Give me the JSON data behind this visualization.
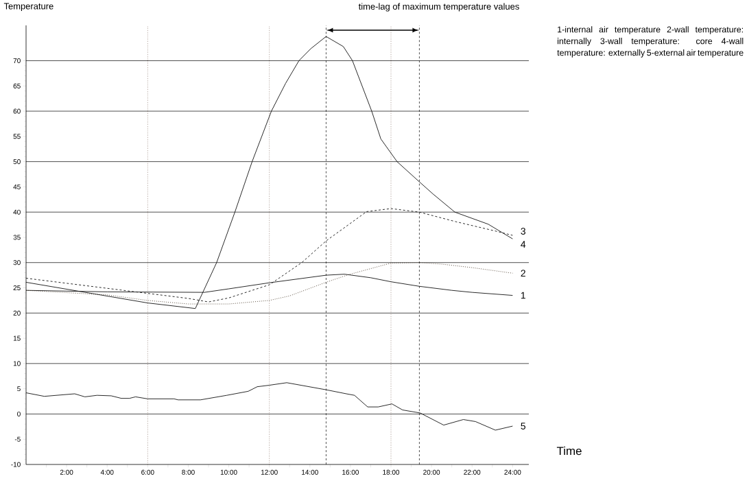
{
  "chart_data": {
    "type": "line",
    "xlabel": "Time",
    "ylabel": "Temperature",
    "annotations": [
      "time-lag of maximum temperature values",
      "1-internal air temperature 2-wall temperature: internally 3-wall temperature: core 4-wall temperature: externally 5-external air temperature"
    ],
    "xlim": [
      0,
      24.8
    ],
    "ylim": [
      -10,
      77
    ],
    "xticks": [
      {
        "value": 1,
        "label": null
      },
      {
        "value": 2,
        "label": "2:00"
      },
      {
        "value": 3,
        "label": null
      },
      {
        "value": 4,
        "label": "4:00"
      },
      {
        "value": 5,
        "label": null
      },
      {
        "value": 6,
        "label": "6:00"
      },
      {
        "value": 7,
        "label": null
      },
      {
        "value": 8,
        "label": "8:00"
      },
      {
        "value": 9,
        "label": null
      },
      {
        "value": 10,
        "label": "10:00"
      },
      {
        "value": 11,
        "label": null
      },
      {
        "value": 12,
        "label": "12:00"
      },
      {
        "value": 13,
        "label": null
      },
      {
        "value": 14,
        "label": "14:00"
      },
      {
        "value": 15,
        "label": null
      },
      {
        "value": 16,
        "label": "16:00"
      },
      {
        "value": 17,
        "label": null
      },
      {
        "value": 18,
        "label": "18:00"
      },
      {
        "value": 19,
        "label": null
      },
      {
        "value": 20,
        "label": "20:00"
      },
      {
        "value": 21,
        "label": null
      },
      {
        "value": 22,
        "label": "22:00"
      },
      {
        "value": 23,
        "label": null
      },
      {
        "value": 24,
        "label": "24:00"
      }
    ],
    "yticks": [
      -10,
      -5,
      0,
      5,
      10,
      15,
      20,
      25,
      30,
      35,
      40,
      45,
      50,
      55,
      60,
      65,
      70
    ],
    "ref_lines": [
      {
        "axis": "y",
        "value": 0,
        "color": "#000000",
        "line_style": "solid"
      },
      {
        "axis": "y",
        "value": 10,
        "color": "#000000",
        "line_style": "solid"
      },
      {
        "axis": "y",
        "value": 20,
        "color": "#000000",
        "line_style": "solid"
      },
      {
        "axis": "y",
        "value": 30,
        "color": "#000000",
        "line_style": "solid"
      },
      {
        "axis": "y",
        "value": 40,
        "color": "#000000",
        "line_style": "solid"
      },
      {
        "axis": "y",
        "value": 50,
        "color": "#000000",
        "line_style": "solid"
      },
      {
        "axis": "y",
        "value": 60,
        "color": "#000000",
        "line_style": "solid"
      },
      {
        "axis": "y",
        "value": 70,
        "color": "#000000",
        "line_style": "solid"
      },
      {
        "axis": "x",
        "value": 6,
        "color": "#5a3a2a",
        "line_style": "dotted"
      },
      {
        "axis": "x",
        "value": 12,
        "color": "#5a3a2a",
        "line_style": "dotted"
      },
      {
        "axis": "x",
        "value": 18,
        "color": "#5a3a2a",
        "line_style": "dotted"
      },
      {
        "axis": "x",
        "value": 14.8,
        "color": "#000000",
        "line_style": "dashed"
      },
      {
        "axis": "x",
        "value": 19.4,
        "color": "#000000",
        "line_style": "dashed"
      }
    ],
    "series": [
      {
        "name": "1",
        "color": "#111111",
        "line_style": "solid",
        "x": [
          0,
          4,
          8.8,
          10,
          12,
          14.8,
          15.7,
          17,
          18,
          19.4,
          21,
          22,
          24
        ],
        "values": [
          24.5,
          24.2,
          24.1,
          24.8,
          26.0,
          27.5,
          27.7,
          27.0,
          26.2,
          25.3,
          24.5,
          24.1,
          23.5
        ]
      },
      {
        "name": "2",
        "color": "#3a2a1a",
        "line_style": "dotted",
        "x": [
          0,
          4,
          6,
          8,
          10,
          12,
          13,
          14.8,
          15.9,
          18,
          19.4,
          20.5,
          22,
          24
        ],
        "values": [
          24.5,
          23.6,
          22.5,
          21.8,
          21.8,
          22.5,
          23.4,
          26.1,
          27.6,
          29.9,
          30.0,
          29.7,
          29.0,
          27.9
        ]
      },
      {
        "name": "3",
        "color": "#111111",
        "line_style": "dashed",
        "x": [
          0,
          6,
          8,
          9,
          10,
          12,
          13.6,
          14.8,
          16.8,
          18,
          19.4,
          21.2,
          23.1,
          24
        ],
        "values": [
          26.9,
          23.9,
          22.9,
          22.2,
          23.0,
          25.6,
          30.0,
          34.3,
          40.1,
          40.7,
          40.0,
          38.1,
          36.3,
          35.4
        ]
      },
      {
        "name": "4",
        "color": "#111111",
        "line_style": "solid",
        "x": [
          0,
          6,
          8.35,
          9.4,
          10.3,
          11.15,
          12.1,
          12.8,
          13.46,
          14.05,
          14.8,
          15.65,
          16.1,
          17.05,
          17.5,
          18.3,
          19.4,
          20.07,
          21.15,
          22.8,
          24
        ],
        "values": [
          26.1,
          22.0,
          20.9,
          30.0,
          40.0,
          50.0,
          60.0,
          65.5,
          70.0,
          72.4,
          74.8,
          72.8,
          70.0,
          60.0,
          54.5,
          50.0,
          46.0,
          43.6,
          40.0,
          37.6,
          34.7
        ]
      },
      {
        "name": "5",
        "color": "#111111",
        "line_style": "solid",
        "x": [
          0,
          0.9,
          2.4,
          2.9,
          3.5,
          4.2,
          4.7,
          5.1,
          5.4,
          6.0,
          7.3,
          7.5,
          8.6,
          9.9,
          10.96,
          11.4,
          12.0,
          12.86,
          14.8,
          15.8,
          16.2,
          16.85,
          17.37,
          18.05,
          18.57,
          19.44,
          20.6,
          21.57,
          22.17,
          23.15,
          24.0
        ],
        "values": [
          4.2,
          3.5,
          4.0,
          3.4,
          3.7,
          3.6,
          3.1,
          3.1,
          3.4,
          3.0,
          3.0,
          2.8,
          2.8,
          3.7,
          4.5,
          5.4,
          5.7,
          6.2,
          4.8,
          4.0,
          3.7,
          1.4,
          1.4,
          2.0,
          0.8,
          0.2,
          -2.2,
          -1.1,
          -1.5,
          -3.2,
          -2.4
        ]
      }
    ]
  }
}
